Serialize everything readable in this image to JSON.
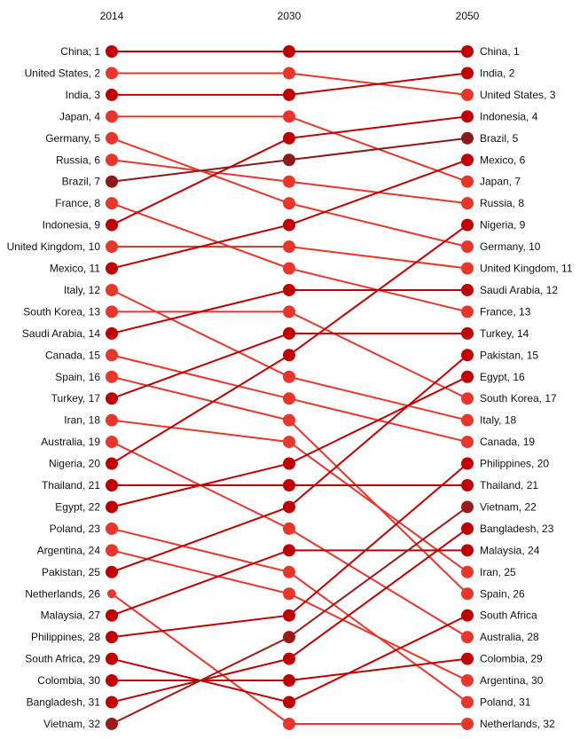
{
  "chart_data": {
    "type": "slope",
    "columns": [
      "2014",
      "2030",
      "2050"
    ],
    "colors": {
      "darker": "#c00000",
      "lighter": "#e8362b",
      "dark": "#9b1b1b",
      "brown": "#8b1a1a"
    },
    "countries": [
      {
        "name": "China",
        "r2014": 1,
        "r2030": 1,
        "r2050": 1,
        "tone": "darker",
        "label2050": "China,  1"
      },
      {
        "name": "United States",
        "r2014": 2,
        "r2030": 2,
        "r2050": 3,
        "tone": "lighter",
        "label2050": "United States,  3"
      },
      {
        "name": "India",
        "r2014": 3,
        "r2030": 3,
        "r2050": 2,
        "tone": "darker",
        "label2050": "India,  2"
      },
      {
        "name": "Japan",
        "r2014": 4,
        "r2030": 4,
        "r2050": 7,
        "tone": "lighter",
        "label2050": "Japan,  7"
      },
      {
        "name": "Germany",
        "r2014": 5,
        "r2030": 8,
        "r2050": 10,
        "tone": "lighter",
        "label2050": "Germany,  10"
      },
      {
        "name": "Russia",
        "r2014": 6,
        "r2030": 7,
        "r2050": 8,
        "tone": "lighter",
        "label2050": "Russia,  8"
      },
      {
        "name": "Brazil",
        "r2014": 7,
        "r2030": 6,
        "r2050": 5,
        "tone": "brown",
        "label2050": "Brazil,  5"
      },
      {
        "name": "France",
        "r2014": 8,
        "r2030": 11,
        "r2050": 13,
        "tone": "lighter",
        "label2050": "France,  13"
      },
      {
        "name": "Indonesia",
        "r2014": 9,
        "r2030": 5,
        "r2050": 4,
        "tone": "darker",
        "label2050": "Indonesia,  4"
      },
      {
        "name": "United Kingdom",
        "r2014": 10,
        "r2030": 10,
        "r2050": 11,
        "tone": "lighter",
        "label2050": "United Kingdom,  11"
      },
      {
        "name": "Mexico",
        "r2014": 11,
        "r2030": 9,
        "r2050": 6,
        "tone": "darker",
        "label2050": "Mexico,  6"
      },
      {
        "name": "Italy",
        "r2014": 12,
        "r2030": 16,
        "r2050": 18,
        "tone": "lighter",
        "label2050": "Italy,  18"
      },
      {
        "name": "South Korea",
        "r2014": 13,
        "r2030": 13,
        "r2050": 17,
        "tone": "lighter",
        "label2050": "South Korea,  17"
      },
      {
        "name": "Saudi Arabia",
        "r2014": 14,
        "r2030": 12,
        "r2050": 12,
        "tone": "darker",
        "label2050": "Saudi Arabia,  12"
      },
      {
        "name": "Canada",
        "r2014": 15,
        "r2030": 17,
        "r2050": 19,
        "tone": "lighter",
        "label2050": "Canada,  19"
      },
      {
        "name": "Spain",
        "r2014": 16,
        "r2030": 18,
        "r2050": 26,
        "tone": "lighter",
        "label2050": "Spain,  26"
      },
      {
        "name": "Turkey",
        "r2014": 17,
        "r2030": 14,
        "r2050": 14,
        "tone": "darker",
        "label2050": "Turkey,  14"
      },
      {
        "name": "Iran",
        "r2014": 18,
        "r2030": 19,
        "r2050": 25,
        "tone": "lighter",
        "label2050": "Iran,  25"
      },
      {
        "name": "Australia",
        "r2014": 19,
        "r2030": 23,
        "r2050": 28,
        "tone": "lighter",
        "label2050": "Australia,  28"
      },
      {
        "name": "Nigeria",
        "r2014": 20,
        "r2030": 15,
        "r2050": 9,
        "tone": "darker",
        "label2050": "Nigeria,  9"
      },
      {
        "name": "Thailand",
        "r2014": 21,
        "r2030": 21,
        "r2050": 21,
        "tone": "darker",
        "label2050": "Thailand,  21"
      },
      {
        "name": "Egypt",
        "r2014": 22,
        "r2030": 20,
        "r2050": 16,
        "tone": "darker",
        "label2050": "Egypt,  16"
      },
      {
        "name": "Poland",
        "r2014": 23,
        "r2030": 25,
        "r2050": 31,
        "tone": "lighter",
        "label2050": "Poland,  31"
      },
      {
        "name": "Argentina",
        "r2014": 24,
        "r2030": 26,
        "r2050": 30,
        "tone": "lighter",
        "label2050": "Argentina,  30"
      },
      {
        "name": "Pakistan",
        "r2014": 25,
        "r2030": 22,
        "r2050": 15,
        "tone": "darker",
        "label2050": "Pakistan,  15"
      },
      {
        "name": "Netherlands",
        "r2014": 26,
        "r2030": 32,
        "r2050": 32,
        "tone": "lighter",
        "label2050": "Netherlands,  32"
      },
      {
        "name": "Malaysia",
        "r2014": 27,
        "r2030": 24,
        "r2050": 24,
        "tone": "darker",
        "label2050": "Malaysia,  24"
      },
      {
        "name": "Philippines",
        "r2014": 28,
        "r2030": 27,
        "r2050": 20,
        "tone": "darker",
        "label2050": "Philippines,  20"
      },
      {
        "name": "South Africa",
        "r2014": 29,
        "r2030": 31,
        "r2050": 27,
        "tone": "darker",
        "label2050": "South Africa"
      },
      {
        "name": "Colombia",
        "r2014": 30,
        "r2030": 30,
        "r2050": 29,
        "tone": "darker",
        "label2050": "Colombia,  29"
      },
      {
        "name": "Bangladesh",
        "r2014": 31,
        "r2030": 29,
        "r2050": 23,
        "tone": "darker",
        "label2050": "Bangladesh,  23"
      },
      {
        "name": "Vietnam",
        "r2014": 32,
        "r2030": 28,
        "r2050": 22,
        "tone": "dark",
        "label2050": "Vietnam,  22"
      }
    ],
    "title": "",
    "xlabel": "",
    "ylabel": "",
    "grid": false,
    "legend": "none"
  }
}
